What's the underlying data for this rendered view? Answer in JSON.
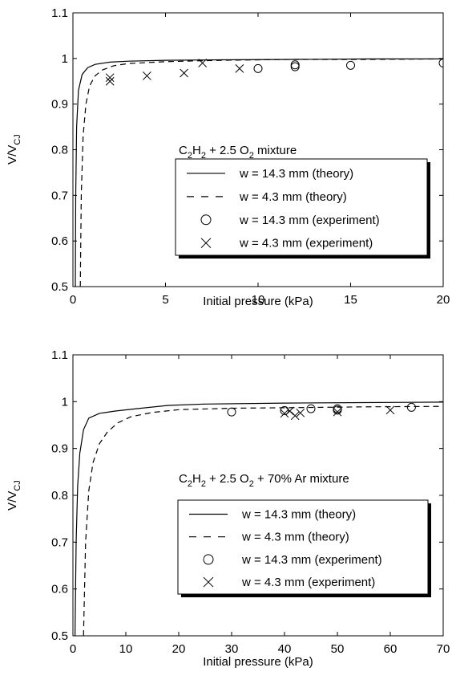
{
  "chart_data": [
    {
      "type": "line",
      "annotation": {
        "base": "C",
        "sub1": "2",
        "mid1": "H",
        "sub2": "2",
        "mid2": " + 2.5 O",
        "sub3": "2",
        "tail": " mixture"
      },
      "xlabel": "Initial pressure (kPa)",
      "ylabel": {
        "base": "V/V",
        "sub": "CJ"
      },
      "xlim": [
        0,
        20
      ],
      "ylim": [
        0.5,
        1.1
      ],
      "xticks": [
        0,
        5,
        10,
        15,
        20
      ],
      "yticks": [
        0.5,
        0.6,
        0.7,
        0.8,
        0.9,
        1,
        1.1
      ],
      "xtick_labels": [
        "0",
        "5",
        "10",
        "15",
        "20"
      ],
      "ytick_labels": [
        "0.5",
        "0.6",
        "0.7",
        "0.8",
        "0.9",
        "1",
        "1.1"
      ],
      "legend_position": "lower-right",
      "series": [
        {
          "name": "w = 14.3 mm (theory)",
          "style": "solid",
          "x": [
            0.13,
            0.15,
            0.2,
            0.3,
            0.5,
            0.8,
            1.2,
            2,
            3,
            5,
            8,
            12,
            16,
            20
          ],
          "y": [
            0.5,
            0.7,
            0.85,
            0.93,
            0.965,
            0.98,
            0.987,
            0.992,
            0.994,
            0.996,
            0.997,
            0.998,
            0.999,
            0.999
          ]
        },
        {
          "name": "w = 4.3 mm (theory)",
          "style": "dashed",
          "x": [
            0.4,
            0.45,
            0.55,
            0.7,
            0.9,
            1.2,
            1.6,
            2.2,
            3,
            5,
            8,
            12,
            16,
            20
          ],
          "y": [
            0.5,
            0.7,
            0.83,
            0.9,
            0.94,
            0.962,
            0.975,
            0.984,
            0.989,
            0.993,
            0.996,
            0.998,
            0.998,
            0.999
          ]
        },
        {
          "name": "w = 14.3 mm (experiment)",
          "style": "circle",
          "x": [
            10,
            12,
            12,
            15,
            20
          ],
          "y": [
            0.978,
            0.982,
            0.986,
            0.985,
            0.99
          ]
        },
        {
          "name": "w = 4.3 mm (experiment)",
          "style": "cross",
          "x": [
            2,
            2,
            4,
            6,
            7,
            9
          ],
          "y": [
            0.95,
            0.958,
            0.962,
            0.968,
            0.99,
            0.978
          ]
        }
      ]
    },
    {
      "type": "line",
      "annotation": {
        "base": "C",
        "sub1": "2",
        "mid1": "H",
        "sub2": "2",
        "mid2": " + 2.5 O",
        "sub3": "2",
        "tail": " + 70% Ar mixture"
      },
      "xlabel": "Initial pressure (kPa)",
      "ylabel": {
        "base": "V/V",
        "sub": "CJ"
      },
      "xlim": [
        0,
        70
      ],
      "ylim": [
        0.5,
        1.1
      ],
      "xticks": [
        0,
        10,
        20,
        30,
        40,
        50,
        60,
        70
      ],
      "yticks": [
        0.5,
        0.6,
        0.7,
        0.8,
        0.9,
        1,
        1.1
      ],
      "xtick_labels": [
        "0",
        "10",
        "20",
        "30",
        "40",
        "50",
        "60",
        "70"
      ],
      "ytick_labels": [
        "0.5",
        "0.6",
        "0.7",
        "0.8",
        "0.9",
        "1",
        "1.1"
      ],
      "legend_position": "lower-right",
      "series": [
        {
          "name": "w = 14.3 mm (theory)",
          "style": "solid",
          "x": [
            0.4,
            0.6,
            0.9,
            1.3,
            2,
            3,
            5,
            8,
            12,
            18,
            25,
            40,
            55,
            70
          ],
          "y": [
            0.5,
            0.7,
            0.82,
            0.89,
            0.94,
            0.965,
            0.975,
            0.98,
            0.985,
            0.992,
            0.995,
            0.997,
            0.998,
            0.999
          ]
        },
        {
          "name": "w = 4.3 mm (theory)",
          "style": "dashed",
          "x": [
            2,
            2.4,
            3,
            3.8,
            5,
            6.5,
            8.5,
            11,
            15,
            20,
            30,
            40,
            55,
            70
          ],
          "y": [
            0.5,
            0.7,
            0.81,
            0.87,
            0.91,
            0.935,
            0.955,
            0.968,
            0.977,
            0.983,
            0.986,
            0.987,
            0.989,
            0.99
          ]
        },
        {
          "name": "w = 14.3 mm (experiment)",
          "style": "circle",
          "x": [
            30,
            40,
            45,
            50,
            50,
            64
          ],
          "y": [
            0.978,
            0.981,
            0.985,
            0.982,
            0.985,
            0.988
          ]
        },
        {
          "name": "w = 4.3 mm (experiment)",
          "style": "cross",
          "x": [
            40,
            41,
            42,
            43,
            50,
            60
          ],
          "y": [
            0.975,
            0.98,
            0.97,
            0.976,
            0.978,
            0.982
          ]
        }
      ]
    }
  ]
}
